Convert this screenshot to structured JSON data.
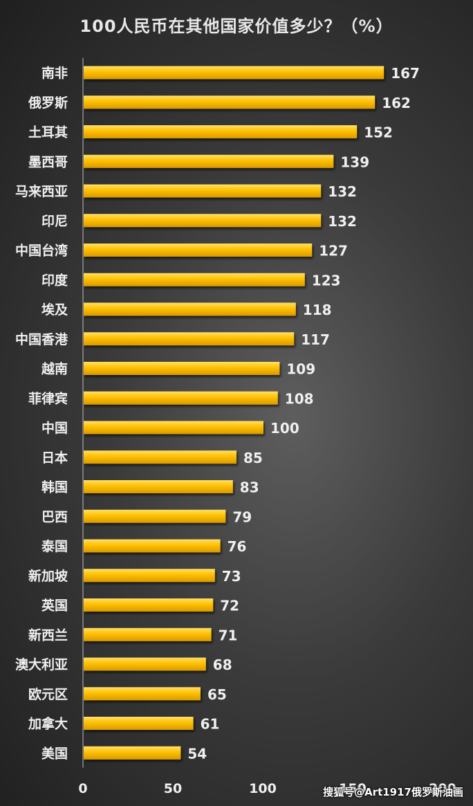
{
  "chart_data": {
    "type": "bar",
    "orientation": "horizontal",
    "title": "100人民币在其他国家价值多少？（%）",
    "categories": [
      "南非",
      "俄罗斯",
      "土耳其",
      "墨西哥",
      "马来西亚",
      "印尼",
      "中国台湾",
      "印度",
      "埃及",
      "中国香港",
      "越南",
      "菲律宾",
      "中国",
      "日本",
      "韩国",
      "巴西",
      "泰国",
      "新加坡",
      "英国",
      "新西兰",
      "澳大利亚",
      "欧元区",
      "加拿大",
      "美国"
    ],
    "values": [
      167,
      162,
      152,
      139,
      132,
      132,
      127,
      123,
      118,
      117,
      109,
      108,
      100,
      85,
      83,
      79,
      76,
      73,
      72,
      71,
      68,
      65,
      61,
      54
    ],
    "x_ticks": [
      "0",
      "50",
      "100",
      "150",
      "200"
    ],
    "xlim": [
      0,
      200
    ],
    "grid": false,
    "legend": "none",
    "bar_color": "#ffc000",
    "bar_color_light": "#ffe066",
    "bar_color_dark": "#d99a00",
    "label_color": "#f0f0f0",
    "value_color": "#f0f0f0"
  },
  "watermark": "搜狐号@Art1917俄罗斯油画"
}
